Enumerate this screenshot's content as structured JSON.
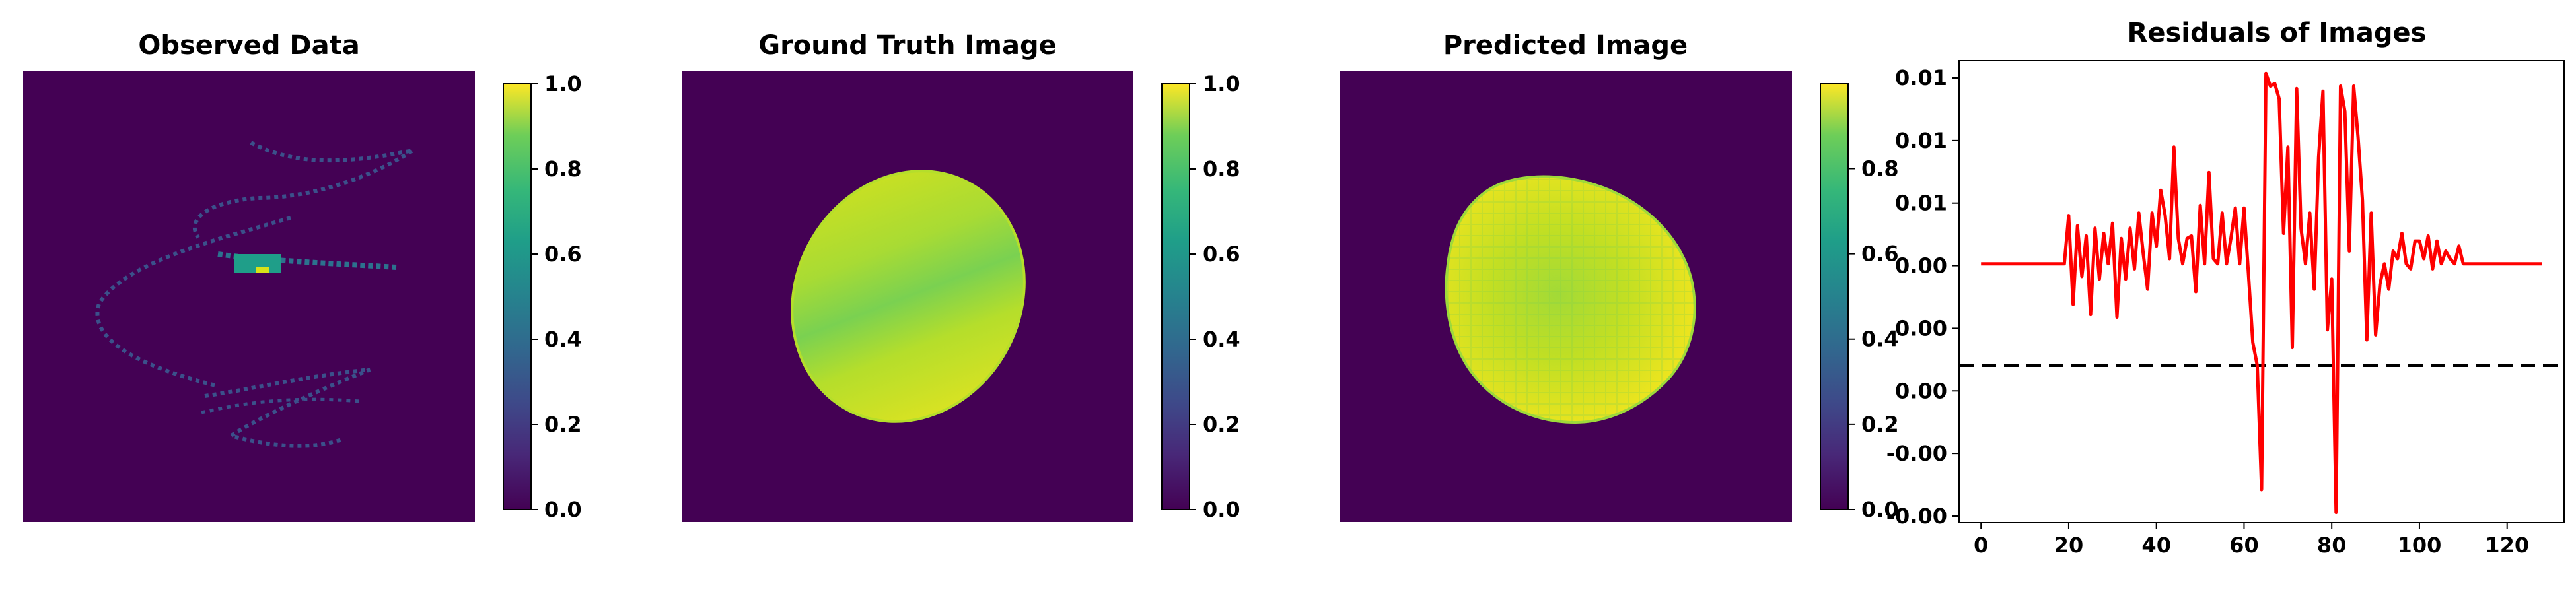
{
  "panels": [
    {
      "title": "Observed Data",
      "colorbar_ticks": [
        "0.0",
        "0.2",
        "0.4",
        "0.6",
        "0.8",
        "1.0"
      ]
    },
    {
      "title": "Ground Truth Image",
      "colorbar_ticks": [
        "0.0",
        "0.2",
        "0.4",
        "0.6",
        "0.8",
        "1.0"
      ]
    },
    {
      "title": "Predicted Image",
      "colorbar_ticks": [
        "0.0",
        "0.2",
        "0.4",
        "0.6",
        "0.8"
      ]
    }
  ],
  "colors": {
    "viridis_low": "#440154",
    "viridis_mid": "#21918c",
    "viridis_high": "#fde725",
    "residual_line": "#ff0000",
    "zero_line": "#000000"
  },
  "chart_data": {
    "type": "line",
    "title": "Residuals of Images",
    "x_ticks": [
      "0",
      "20",
      "40",
      "60",
      "80",
      "100",
      "120"
    ],
    "y_ticks": [
      "-0.00",
      "-0.00",
      "0.00",
      "0.00",
      "0.00",
      "0.01",
      "0.01",
      "0.01"
    ],
    "xlim": [
      -5,
      133
    ],
    "ylim": [
      -0.0062,
      0.012
    ],
    "reference_line_y": 0,
    "series": [
      {
        "values": [
          [
            0,
            0.004
          ],
          [
            19,
            0.004
          ],
          [
            20,
            0.0059
          ],
          [
            21,
            0.0024
          ],
          [
            22,
            0.0055
          ],
          [
            23,
            0.0035
          ],
          [
            24,
            0.0051
          ],
          [
            25,
            0.002
          ],
          [
            26,
            0.0054
          ],
          [
            27,
            0.0034
          ],
          [
            28,
            0.0052
          ],
          [
            29,
            0.004
          ],
          [
            30,
            0.0056
          ],
          [
            31,
            0.0019
          ],
          [
            32,
            0.005
          ],
          [
            33,
            0.0034
          ],
          [
            34,
            0.0054
          ],
          [
            35,
            0.0038
          ],
          [
            36,
            0.006
          ],
          [
            37,
            0.0044
          ],
          [
            38,
            0.003
          ],
          [
            39,
            0.006
          ],
          [
            40,
            0.0047
          ],
          [
            41,
            0.0069
          ],
          [
            42,
            0.0059
          ],
          [
            43,
            0.0042
          ],
          [
            44,
            0.0086
          ],
          [
            45,
            0.005
          ],
          [
            46,
            0.004
          ],
          [
            47,
            0.005
          ],
          [
            48,
            0.0051
          ],
          [
            49,
            0.0029
          ],
          [
            50,
            0.0063
          ],
          [
            51,
            0.004
          ],
          [
            52,
            0.0076
          ],
          [
            53,
            0.0042
          ],
          [
            54,
            0.004
          ],
          [
            55,
            0.006
          ],
          [
            56,
            0.004
          ],
          [
            57,
            0.005
          ],
          [
            58,
            0.0062
          ],
          [
            59,
            0.004
          ],
          [
            60,
            0.0062
          ],
          [
            61,
            0.0036
          ],
          [
            62,
            0.0009
          ],
          [
            63,
            0.0
          ],
          [
            64,
            -0.0049
          ],
          [
            65,
            0.0115
          ],
          [
            66,
            0.011
          ],
          [
            67,
            0.0111
          ],
          [
            68,
            0.0105
          ],
          [
            69,
            0.0052
          ],
          [
            70,
            0.0086
          ],
          [
            71,
            0.0007
          ],
          [
            72,
            0.0109
          ],
          [
            73,
            0.0054
          ],
          [
            74,
            0.004
          ],
          [
            75,
            0.006
          ],
          [
            76,
            0.003
          ],
          [
            77,
            0.0082
          ],
          [
            78,
            0.0108
          ],
          [
            79,
            0.0014
          ],
          [
            80,
            0.0034
          ],
          [
            81,
            -0.0058
          ],
          [
            82,
            0.011
          ],
          [
            83,
            0.01
          ],
          [
            84,
            0.0045
          ],
          [
            85,
            0.011
          ],
          [
            86,
            0.009
          ],
          [
            87,
            0.0065
          ],
          [
            88,
            0.001
          ],
          [
            89,
            0.006
          ],
          [
            90,
            0.0012
          ],
          [
            91,
            0.0032
          ],
          [
            92,
            0.004
          ],
          [
            93,
            0.003
          ],
          [
            94,
            0.0045
          ],
          [
            95,
            0.0042
          ],
          [
            96,
            0.0052
          ],
          [
            97,
            0.004
          ],
          [
            98,
            0.0038
          ],
          [
            99,
            0.0049
          ],
          [
            100,
            0.0049
          ],
          [
            101,
            0.0042
          ],
          [
            102,
            0.0051
          ],
          [
            103,
            0.0038
          ],
          [
            104,
            0.0049
          ],
          [
            105,
            0.004
          ],
          [
            106,
            0.0045
          ],
          [
            107,
            0.0042
          ],
          [
            108,
            0.004
          ],
          [
            109,
            0.0047
          ],
          [
            110,
            0.004
          ],
          [
            128,
            0.004
          ]
        ]
      }
    ]
  }
}
